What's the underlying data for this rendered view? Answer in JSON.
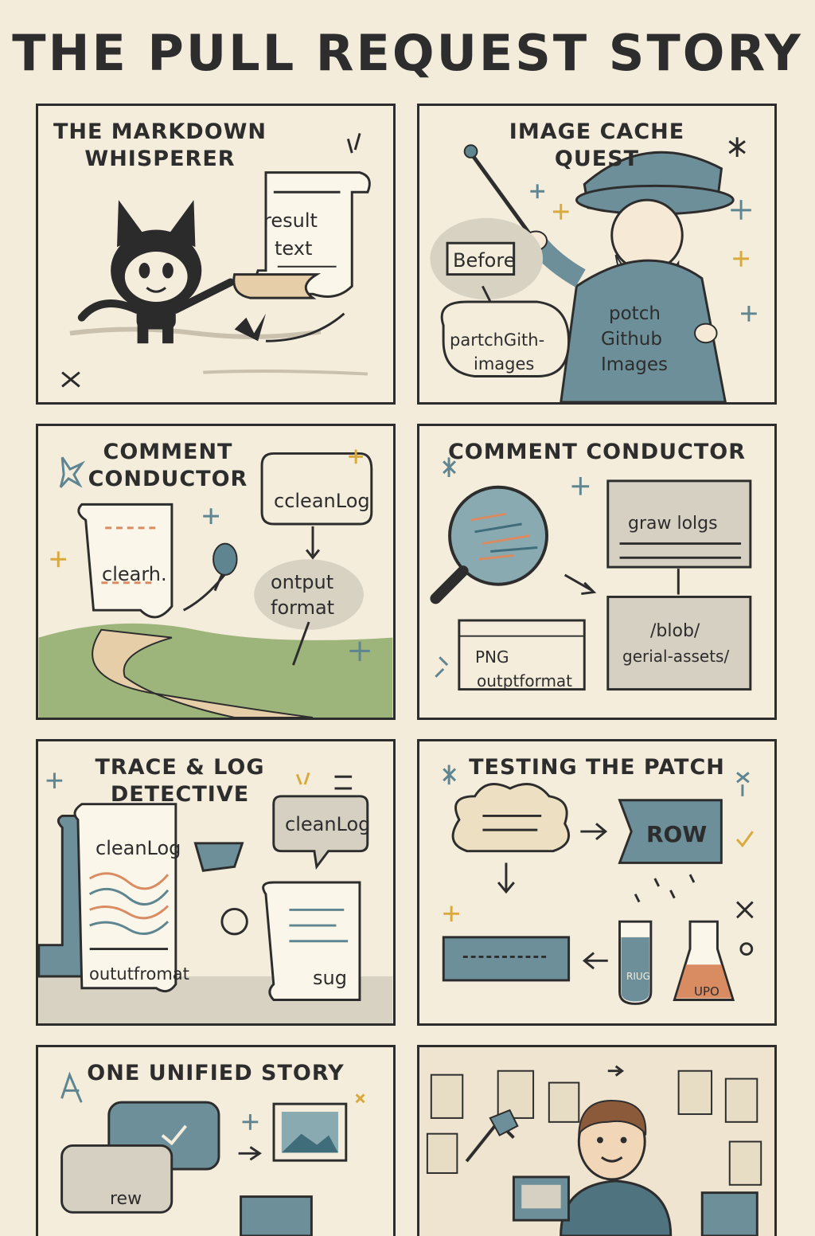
{
  "title": "THE PULL REQUEST STORY",
  "palette": {
    "paper": "#f3ecdb",
    "ink": "#2d2d2d",
    "teal": "#5f8591",
    "orange": "#d98b62",
    "tan": "#e6cfa8",
    "gold": "#d9a93b",
    "green": "#9db57a"
  },
  "panels": [
    {
      "title_line1": "THE MARKDOWN",
      "title_line2": "WHISPERER",
      "scroll_line1": "result",
      "scroll_line2": "text"
    },
    {
      "title_line1": "IMAGE CACHE",
      "title_line2": "QUEST",
      "before": "Before",
      "bubble_line1": "partchGith-",
      "bubble_line2": "images",
      "robe_line1": "potch",
      "robe_line2": "Github",
      "robe_line3": "Images"
    },
    {
      "title_line1": "COMMENT",
      "title_line2": "CONDUCTOR",
      "bubble": "ccleanLog",
      "scroll": "clearh.",
      "output_line1": "ontput",
      "output_line2": "format"
    },
    {
      "title": "COMMENT CONDUCTOR",
      "raw_logs": "graw lolgs",
      "path_line1": "/blob/",
      "path_line2": "gerial-assets/",
      "png": "PNG",
      "output": "outptformat"
    },
    {
      "title_line1": "TRACE & LOG",
      "title_line2": "DETECTIVE",
      "scroll_top": "cleanLog",
      "scroll_bottom": "oututfromat",
      "bubble": "cleanLog",
      "paper": "sug"
    },
    {
      "title": "TESTING THE PATCH",
      "row": "ROW",
      "tube": "RIUG",
      "flask": "UPO"
    },
    {
      "title": "ONE UNIFIED STORY",
      "card": "rew"
    },
    {}
  ]
}
